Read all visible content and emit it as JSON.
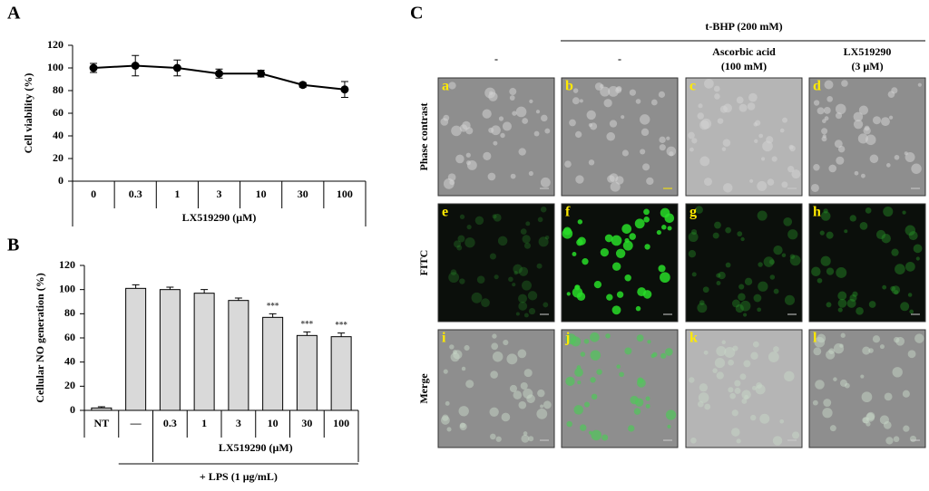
{
  "chart_data": [
    {
      "type": "line",
      "panel": "A",
      "y_label": "Cell viability (%)",
      "x_label": "LX519290 (μM)",
      "categories": [
        "0",
        "0.3",
        "1",
        "3",
        "10",
        "30",
        "100"
      ],
      "values": [
        100,
        102,
        100,
        95,
        95,
        85,
        81
      ],
      "errors": [
        4,
        9,
        7,
        4,
        3,
        2,
        7
      ],
      "color": "#000000",
      "ylim": [
        0,
        120
      ],
      "yticks": [
        0,
        20,
        40,
        60,
        80,
        100,
        120
      ]
    },
    {
      "type": "bar",
      "panel": "B",
      "y_label": "Cellular NO generation (%)",
      "group_label": "LX519290 (μM)",
      "bottom_label": "+ LPS (1 μg/mL)",
      "categories": [
        "NT",
        "—",
        "0.3",
        "1",
        "3",
        "10",
        "30",
        "100"
      ],
      "values": [
        2,
        101,
        100,
        97,
        91,
        77,
        62,
        61
      ],
      "errors": [
        1,
        3,
        2,
        3,
        2,
        3,
        3,
        3
      ],
      "significance": [
        null,
        null,
        null,
        null,
        null,
        "***",
        "***",
        "***"
      ],
      "color": "#d9d9d9",
      "ylim": [
        0,
        120
      ],
      "yticks": [
        0,
        20,
        40,
        60,
        80,
        100,
        120
      ]
    }
  ],
  "panel_c": {
    "label": "C",
    "treatment": "t-BHP (200 mM)",
    "columns": [
      [
        "-"
      ],
      [
        "-"
      ],
      [
        "Ascorbic acid",
        "(100 mM)"
      ],
      [
        "LX519290",
        "(3 μM)"
      ]
    ],
    "rows": [
      "Phase contrast",
      "FITC",
      "Merge"
    ],
    "tiles": [
      [
        "a",
        "b",
        "c",
        "d"
      ],
      [
        "e",
        "f",
        "g",
        "h"
      ],
      [
        "i",
        "j",
        "k",
        "l"
      ]
    ]
  }
}
